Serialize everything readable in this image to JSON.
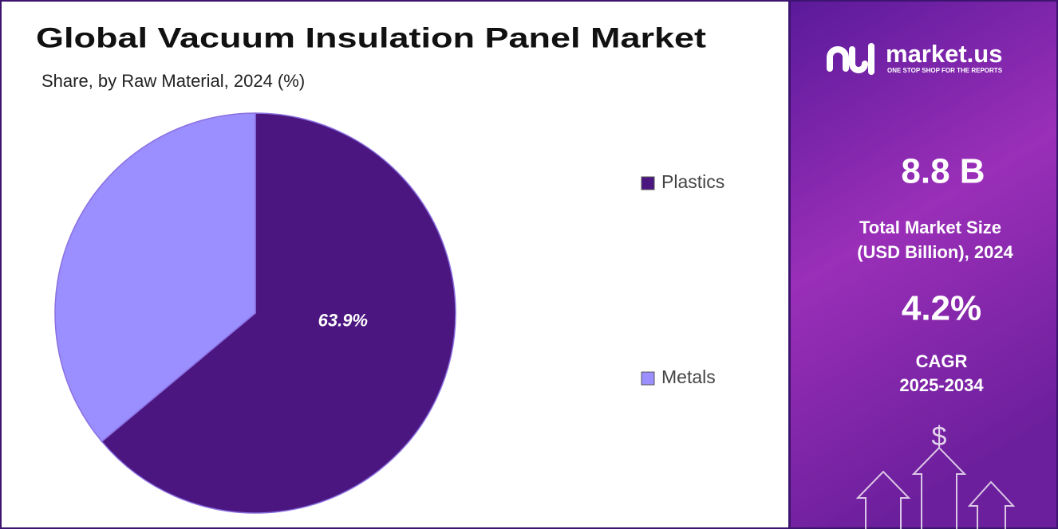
{
  "chart_data": {
    "type": "pie",
    "title": "Global Vacuum Insulation Panel Market",
    "subtitle": "Share, by Raw Material, 2024 (%)",
    "categories": [
      "Plastics",
      "Metals"
    ],
    "values": [
      63.9,
      36.1
    ],
    "value_labels": [
      "63.9%",
      null
    ],
    "colors": [
      "#4b1680",
      "#9b8fff"
    ]
  },
  "panel": {
    "brand": "market.us",
    "tagline": "ONE STOP SHOP FOR THE REPORTS",
    "market_size": "8.8 B",
    "market_size_label_1": "Total Market Size",
    "market_size_label_2": "(USD Billion), 2024",
    "cagr": "4.2%",
    "cagr_label_1": "CAGR",
    "cagr_label_2": "2025-2034"
  }
}
